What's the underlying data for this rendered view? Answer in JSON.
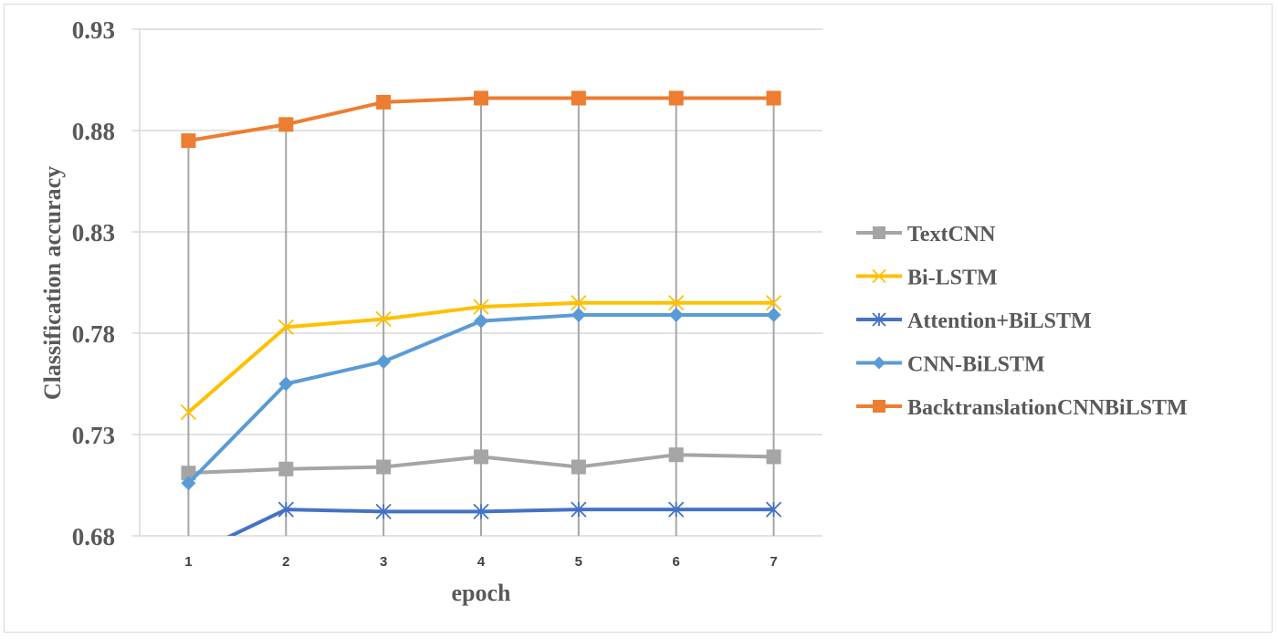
{
  "chart_data": {
    "type": "line",
    "title": "",
    "xlabel": "epoch",
    "ylabel": "Classification accuracy",
    "categories": [
      "1",
      "2",
      "3",
      "4",
      "5",
      "6",
      "7"
    ],
    "x": [
      1,
      2,
      3,
      4,
      5,
      6,
      7
    ],
    "ylim": [
      0.68,
      0.93
    ],
    "yticks": [
      "0.68",
      "0.73",
      "0.78",
      "0.83",
      "0.88",
      "0.93"
    ],
    "grid": {
      "horizontal": true,
      "vertical_drop_lines": true
    },
    "legend_position": "right",
    "series": [
      {
        "name": "TextCNN",
        "color": "#A5A5A5",
        "marker": "square",
        "values": [
          0.711,
          0.713,
          0.714,
          0.719,
          0.714,
          0.72,
          0.719
        ]
      },
      {
        "name": "Bi-LSTM",
        "color": "#FFC000",
        "marker": "x",
        "values": [
          0.741,
          0.783,
          0.787,
          0.793,
          0.795,
          0.795,
          0.795
        ]
      },
      {
        "name": "Attention+BiLSTM",
        "color": "#4472C4",
        "marker": "star",
        "values": [
          0.67,
          0.693,
          0.692,
          0.692,
          0.693,
          0.693,
          0.693
        ]
      },
      {
        "name": "CNN-BiLSTM",
        "color": "#5B9BD5",
        "marker": "diamond",
        "values": [
          0.706,
          0.755,
          0.766,
          0.786,
          0.789,
          0.789,
          0.789
        ]
      },
      {
        "name": "BacktranslationCNNBiLSTM",
        "color": "#ED7D31",
        "marker": "square",
        "values": [
          0.875,
          0.883,
          0.894,
          0.896,
          0.896,
          0.896,
          0.896
        ]
      }
    ]
  }
}
